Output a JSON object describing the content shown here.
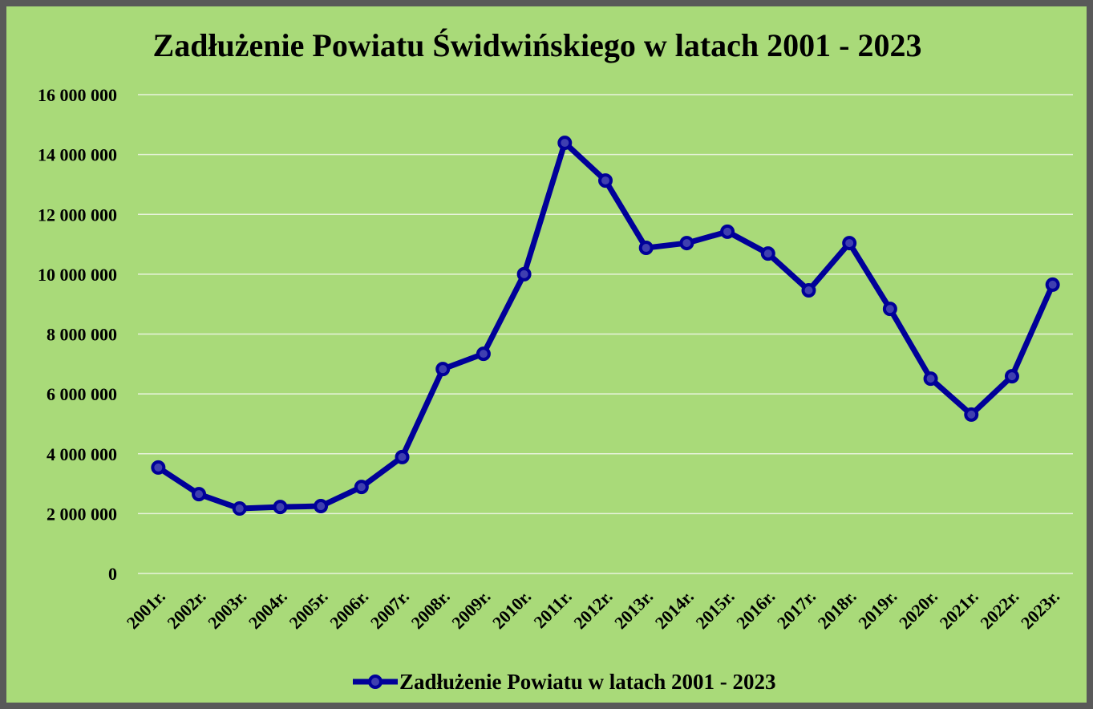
{
  "chart_data": {
    "type": "line",
    "title": "Zadłużenie Powiatu Świdwińskiego w latach 2001 - 2023",
    "categories": [
      "2001r.",
      "2002r.",
      "2003r.",
      "2004r.",
      "2005r.",
      "2006r.",
      "2007r.",
      "2008r.",
      "2009r.",
      "2010r.",
      "2011r.",
      "2012r.",
      "2013r.",
      "2014r.",
      "2015r.",
      "2016r.",
      "2017r.",
      "2018r.",
      "2019r.",
      "2020r.",
      "2021r.",
      "2022r.",
      "2023r."
    ],
    "series": [
      {
        "name": "Zadłużenie Powiatu w latach 2001 - 2023",
        "color": "#000099",
        "values": [
          3540000,
          2650000,
          2170000,
          2220000,
          2250000,
          2890000,
          3890000,
          6830000,
          7340000,
          10000000,
          14390000,
          13130000,
          10880000,
          11040000,
          11420000,
          10690000,
          9460000,
          11040000,
          8840000,
          6510000,
          5310000,
          6590000,
          9650000
        ]
      }
    ],
    "ylim": [
      0,
      16000000
    ],
    "yticks": [
      0,
      {
        "value": 2000000,
        "label": "2 000 000"
      },
      {
        "value": 4000000,
        "label": "4 000 000"
      },
      {
        "value": 6000000,
        "label": "6 000 000"
      },
      {
        "value": 8000000,
        "label": "8 000 000"
      },
      {
        "value": 10000000,
        "label": "10 000 000"
      },
      {
        "value": 12000000,
        "label": "12 000 000"
      },
      {
        "value": 14000000,
        "label": "14 000 000"
      },
      {
        "value": 16000000,
        "label": "16 000 000"
      }
    ],
    "grid": true,
    "legend": "bottom"
  }
}
